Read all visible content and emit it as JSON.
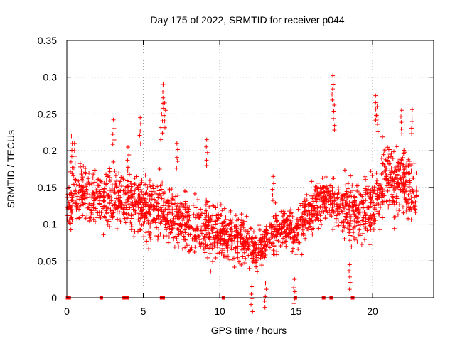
{
  "chart_data": {
    "type": "scatter",
    "title": "Day 175 of 2022, SRMTID for receiver p044",
    "xlabel": "GPS time / hours",
    "ylabel": "SRMTID / TECUs",
    "xlim": [
      0,
      24
    ],
    "ylim": [
      0,
      0.35
    ],
    "x_ticks": [
      0,
      5,
      10,
      15,
      20
    ],
    "x_tick_labels": [
      "0",
      "5",
      "10",
      "15",
      "20"
    ],
    "y_ticks": [
      0,
      0.05,
      0.1,
      0.15,
      0.2,
      0.25,
      0.3,
      0.35
    ],
    "y_tick_labels": [
      "0",
      "0.05",
      "0.1",
      "0.15",
      "0.2",
      "0.25",
      "0.3",
      "0.35"
    ],
    "grid": true,
    "marker": "plus",
    "series_color": "#ff0000",
    "time_range_hours": [
      0,
      22.9
    ],
    "trend": [
      [
        0.0,
        0.125
      ],
      [
        1.0,
        0.145
      ],
      [
        2.0,
        0.13
      ],
      [
        3.0,
        0.14
      ],
      [
        4.0,
        0.13
      ],
      [
        5.0,
        0.125
      ],
      [
        6.0,
        0.12
      ],
      [
        7.0,
        0.11
      ],
      [
        8.0,
        0.1
      ],
      [
        9.0,
        0.095
      ],
      [
        10.0,
        0.09
      ],
      [
        11.0,
        0.085
      ],
      [
        12.0,
        0.07
      ],
      [
        12.5,
        0.065
      ],
      [
        13.0,
        0.075
      ],
      [
        14.0,
        0.1
      ],
      [
        15.0,
        0.09
      ],
      [
        16.0,
        0.12
      ],
      [
        17.0,
        0.14
      ],
      [
        18.0,
        0.125
      ],
      [
        19.0,
        0.11
      ],
      [
        20.0,
        0.13
      ],
      [
        21.0,
        0.165
      ],
      [
        22.0,
        0.155
      ],
      [
        22.9,
        0.14
      ]
    ],
    "spread": [
      [
        0.0,
        0.035
      ],
      [
        5.0,
        0.04
      ],
      [
        10.0,
        0.035
      ],
      [
        12.5,
        0.025
      ],
      [
        15.0,
        0.03
      ],
      [
        18.0,
        0.035
      ],
      [
        21.0,
        0.045
      ],
      [
        22.9,
        0.04
      ]
    ],
    "peaks": [
      {
        "x": 3.05,
        "y": 0.242
      },
      {
        "x": 4.0,
        "y": 0.205
      },
      {
        "x": 4.8,
        "y": 0.245
      },
      {
        "x": 6.3,
        "y": 0.29
      },
      {
        "x": 6.4,
        "y": 0.265
      },
      {
        "x": 6.2,
        "y": 0.25
      },
      {
        "x": 7.2,
        "y": 0.21
      },
      {
        "x": 9.15,
        "y": 0.215
      },
      {
        "x": 13.5,
        "y": 0.165
      },
      {
        "x": 17.4,
        "y": 0.302
      },
      {
        "x": 17.5,
        "y": 0.262
      },
      {
        "x": 20.2,
        "y": 0.275
      },
      {
        "x": 20.3,
        "y": 0.26
      },
      {
        "x": 21.9,
        "y": 0.255
      },
      {
        "x": 22.6,
        "y": 0.256
      },
      {
        "x": 0.3,
        "y": 0.22
      },
      {
        "x": 0.5,
        "y": 0.21
      },
      {
        "x": 13.0,
        "y": 0.02
      },
      {
        "x": 12.1,
        "y": 0.015
      },
      {
        "x": 14.9,
        "y": 0.025
      },
      {
        "x": 18.5,
        "y": 0.045
      }
    ],
    "zero_markers_x": [
      0.05,
      0.15,
      2.25,
      3.75,
      3.85,
      3.95,
      6.2,
      6.3,
      10.25,
      14.95,
      16.8,
      17.3,
      18.7
    ]
  }
}
